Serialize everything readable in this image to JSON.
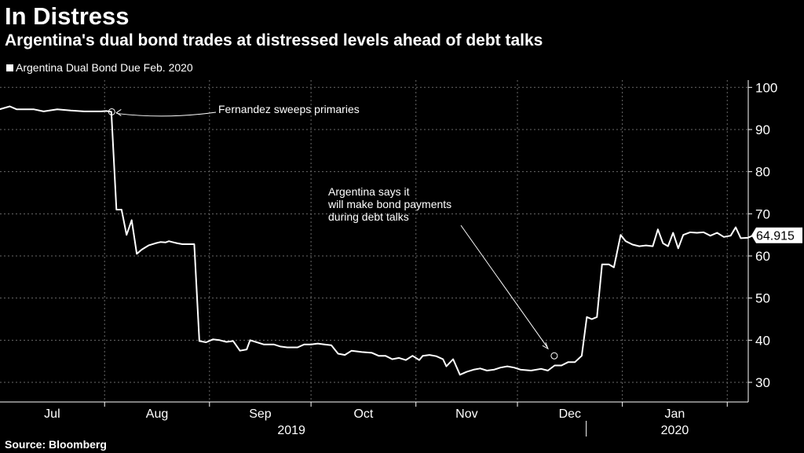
{
  "header": {
    "title": "In Distress",
    "subtitle": "Argentina's dual bond trades at distressed levels ahead of debt talks",
    "legend_label": "Argentina Dual Bond Due Feb. 2020"
  },
  "footer": {
    "source": "Source: Bloomberg"
  },
  "colors": {
    "background": "#000000",
    "line": "#ffffff",
    "grid": "#6a6a6a",
    "text": "#ffffff"
  },
  "chart_data": {
    "type": "line",
    "title": "In Distress",
    "subtitle": "Argentina's dual bond trades at distressed levels ahead of debt talks",
    "xlabel": "",
    "ylabel": "",
    "x_unit": "days since 2019-06-30",
    "xlim": [
      0,
      224
    ],
    "ylim": [
      25,
      102
    ],
    "yticks": [
      30,
      40,
      50,
      60,
      70,
      80,
      90,
      100
    ],
    "x_gridlines": [
      0,
      31,
      62,
      92,
      123,
      153,
      184,
      215
    ],
    "month_ticks": [
      {
        "label": "Jul",
        "x": 15.5
      },
      {
        "label": "Aug",
        "x": 46.5
      },
      {
        "label": "Sep",
        "x": 77
      },
      {
        "label": "Oct",
        "x": 107.5
      },
      {
        "label": "Nov",
        "x": 138
      },
      {
        "label": "Dec",
        "x": 168.5
      },
      {
        "label": "Jan",
        "x": 199.5
      }
    ],
    "year_labels": [
      {
        "label": "2019",
        "x": 92
      },
      {
        "label": "2020",
        "x": 199.5
      }
    ],
    "year_separator_x": 184,
    "grid": true,
    "series": [
      {
        "name": "Argentina Dual Bond Due Feb. 2020",
        "last_value": "64.915",
        "points": [
          [
            0,
            94.8
          ],
          [
            3,
            95.5
          ],
          [
            5,
            94.8
          ],
          [
            10,
            94.8
          ],
          [
            13,
            94.3
          ],
          [
            17,
            94.8
          ],
          [
            21,
            94.5
          ],
          [
            25,
            94.3
          ],
          [
            30,
            94.3
          ],
          [
            31.5,
            94.4
          ],
          [
            33,
            94.2
          ],
          [
            34.5,
            71
          ],
          [
            36,
            71
          ],
          [
            37.5,
            65
          ],
          [
            39,
            68.5
          ],
          [
            40.5,
            60.5
          ],
          [
            42,
            61.5
          ],
          [
            44,
            62.5
          ],
          [
            46,
            63
          ],
          [
            47.5,
            63.3
          ],
          [
            49,
            63.2
          ],
          [
            50,
            63.5
          ],
          [
            51,
            63.3
          ],
          [
            52.5,
            63
          ],
          [
            54,
            62.8
          ],
          [
            56,
            62.8
          ],
          [
            57.5,
            62.8
          ],
          [
            59,
            39.8
          ],
          [
            61,
            39.5
          ],
          [
            63,
            40.2
          ],
          [
            65,
            40
          ],
          [
            67,
            39.6
          ],
          [
            69,
            39.8
          ],
          [
            71,
            37.5
          ],
          [
            73,
            37.8
          ],
          [
            74,
            40
          ],
          [
            76,
            39.5
          ],
          [
            78,
            39
          ],
          [
            81,
            39
          ],
          [
            83,
            38.5
          ],
          [
            85,
            38.3
          ],
          [
            88,
            38.3
          ],
          [
            90,
            39
          ],
          [
            92,
            39
          ],
          [
            94,
            39.2
          ],
          [
            96,
            39
          ],
          [
            98,
            38.8
          ],
          [
            100,
            36.8
          ],
          [
            102,
            36.5
          ],
          [
            104,
            37.5
          ],
          [
            107,
            37.2
          ],
          [
            110,
            37
          ],
          [
            112,
            36.3
          ],
          [
            114,
            36.3
          ],
          [
            116,
            35.5
          ],
          [
            118,
            35.8
          ],
          [
            120,
            35.3
          ],
          [
            122,
            36.3
          ],
          [
            124,
            35.3
          ],
          [
            125,
            36.3
          ],
          [
            127,
            36.5
          ],
          [
            129,
            36.2
          ],
          [
            131,
            35.5
          ],
          [
            132,
            33.8
          ],
          [
            134,
            35.5
          ],
          [
            136,
            31.8
          ],
          [
            138,
            32.5
          ],
          [
            140,
            33
          ],
          [
            142,
            33.3
          ],
          [
            144,
            32.8
          ],
          [
            146,
            33
          ],
          [
            148,
            33.5
          ],
          [
            150,
            33.8
          ],
          [
            152,
            33.5
          ],
          [
            154,
            33
          ],
          [
            157,
            32.8
          ],
          [
            160,
            33.2
          ],
          [
            162,
            32.8
          ],
          [
            164,
            34
          ],
          [
            166,
            34
          ],
          [
            168,
            34.8
          ],
          [
            170,
            34.8
          ],
          [
            172,
            36.3
          ],
          [
            173.5,
            45.5
          ],
          [
            175,
            45
          ],
          [
            176.5,
            45.5
          ],
          [
            178,
            58
          ],
          [
            180,
            58
          ],
          [
            181.5,
            57.3
          ],
          [
            183.5,
            65
          ],
          [
            185,
            63.5
          ],
          [
            187,
            62.7
          ],
          [
            189,
            62.3
          ],
          [
            191,
            62.5
          ],
          [
            193,
            62.3
          ],
          [
            194.5,
            66.3
          ],
          [
            196,
            63
          ],
          [
            197.5,
            62.3
          ],
          [
            199,
            65.5
          ],
          [
            200.5,
            61.8
          ],
          [
            202,
            65
          ],
          [
            204,
            65.6
          ],
          [
            206,
            65.5
          ],
          [
            208,
            65.6
          ],
          [
            210,
            64.8
          ],
          [
            212,
            65.5
          ],
          [
            214,
            64.5
          ],
          [
            216,
            64.8
          ],
          [
            217.5,
            66.8
          ],
          [
            219,
            64.2
          ],
          [
            221,
            64.3
          ],
          [
            222.5,
            64.8
          ],
          [
            224,
            64.3
          ],
          [
            226,
            64.5
          ],
          [
            228,
            65.3
          ],
          [
            230,
            64.9
          ]
        ]
      }
    ],
    "annotations": [
      {
        "text_lines": [
          "Fernandez sweeps primaries"
        ],
        "x": 33,
        "y": 94.2
      },
      {
        "text_lines": [
          "Argentina says it",
          "will make bond payments",
          "during debt talks"
        ],
        "x": 172,
        "y": 36.3
      }
    ]
  }
}
